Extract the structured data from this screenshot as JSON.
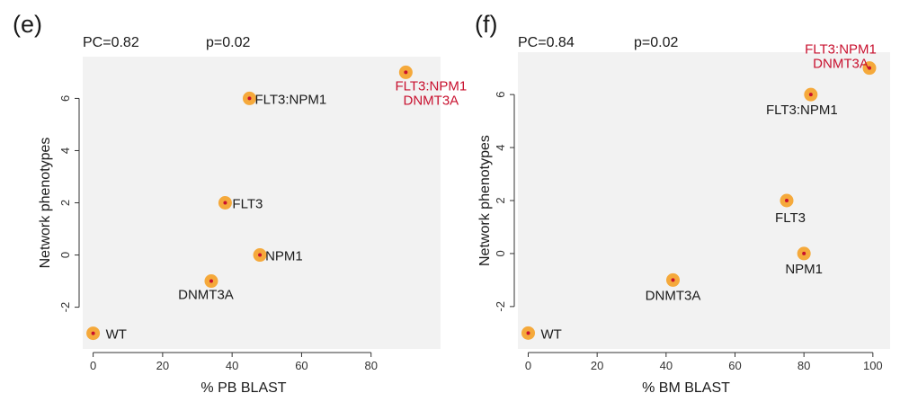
{
  "colors": {
    "panel_bg": "#f2f2f2",
    "marker_outer": "#f5a93b",
    "marker_inner": "#c8102e",
    "label_default": "#1a1a1a",
    "label_highlight": "#c8102e",
    "axis": "#333333"
  },
  "chart_data": [
    {
      "type": "scatter",
      "panel": "(e)",
      "stats": {
        "pc": "PC=0.82",
        "p": "p=0.02"
      },
      "xlabel": "% PB BLAST",
      "ylabel": "Network phenotypes",
      "xlim": [
        -3,
        100
      ],
      "ylim": [
        -3.6,
        7.6
      ],
      "xticks": [
        0,
        20,
        40,
        60,
        80
      ],
      "yticks": [
        -2,
        0,
        2,
        4,
        6
      ],
      "grid": false,
      "points": [
        {
          "x": 0,
          "y": -3,
          "label": [
            "WT"
          ],
          "highlight": false
        },
        {
          "x": 34,
          "y": -1,
          "label": [
            "DNMT3A"
          ],
          "highlight": false
        },
        {
          "x": 48,
          "y": 0,
          "label": [
            "NPM1"
          ],
          "highlight": false
        },
        {
          "x": 38,
          "y": 2,
          "label": [
            "FLT3"
          ],
          "highlight": false
        },
        {
          "x": 45,
          "y": 6,
          "label": [
            "FLT3:NPM1"
          ],
          "highlight": false
        },
        {
          "x": 90,
          "y": 7,
          "label": [
            "FLT3:NPM1",
            "DNMT3A"
          ],
          "highlight": true
        }
      ]
    },
    {
      "type": "scatter",
      "panel": "(f)",
      "stats": {
        "pc": "PC=0.84",
        "p": "p=0.02"
      },
      "xlabel": "% BM BLAST",
      "ylabel": "Network phenotypes",
      "xlim": [
        -3,
        105
      ],
      "ylim": [
        -3.6,
        7.6
      ],
      "xticks": [
        0,
        20,
        40,
        60,
        80,
        100
      ],
      "yticks": [
        -2,
        0,
        2,
        4,
        6
      ],
      "grid": false,
      "points": [
        {
          "x": 0,
          "y": -3,
          "label": [
            "WT"
          ],
          "highlight": false
        },
        {
          "x": 42,
          "y": -1,
          "label": [
            "DNMT3A"
          ],
          "highlight": false
        },
        {
          "x": 80,
          "y": 0,
          "label": [
            "NPM1"
          ],
          "highlight": false
        },
        {
          "x": 75,
          "y": 2,
          "label": [
            "FLT3"
          ],
          "highlight": false
        },
        {
          "x": 82,
          "y": 6,
          "label": [
            "FLT3:NPM1"
          ],
          "highlight": false
        },
        {
          "x": 99,
          "y": 7,
          "label": [
            "FLT3:NPM1",
            "DNMT3A"
          ],
          "highlight": true
        }
      ]
    }
  ]
}
